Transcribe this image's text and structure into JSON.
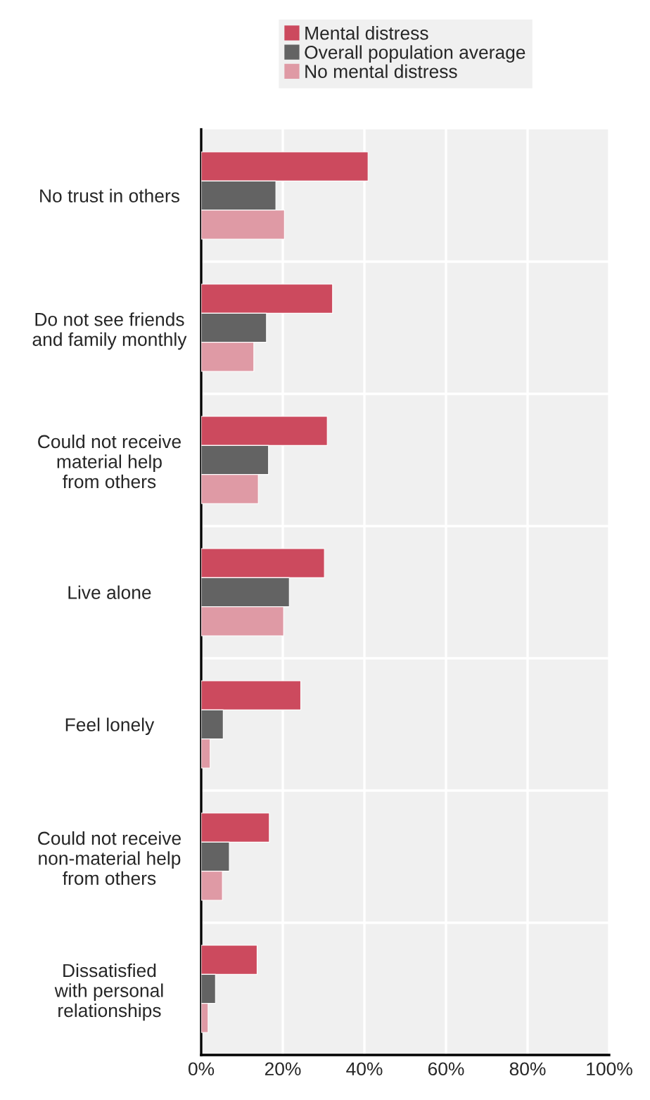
{
  "chart_data": {
    "type": "bar",
    "orientation": "horizontal",
    "categories": [
      "No trust in others",
      "Do not see friends\nand family monthly",
      "Could not receive\nmaterial help\nfrom others",
      "Live alone",
      "Feel lonely",
      "Could not receive\nnon-material help\nfrom others",
      "Dissatisfied\nwith personal\nrelationships"
    ],
    "series": [
      {
        "name": "Mental distress",
        "color": "#cc4a5e",
        "values": [
          40.9,
          32.2,
          30.9,
          30.2,
          24.4,
          16.7,
          13.7
        ]
      },
      {
        "name": "Overall population average",
        "color": "#636363",
        "values": [
          18.3,
          16.0,
          16.5,
          21.6,
          5.4,
          6.9,
          3.5
        ]
      },
      {
        "name": "No mental distress",
        "color": "#df9aa5",
        "values": [
          20.4,
          12.9,
          14.0,
          20.2,
          2.2,
          5.2,
          1.7
        ]
      }
    ],
    "xlim": [
      0,
      100
    ],
    "xticks": [
      {
        "value": 0,
        "label": "0%"
      },
      {
        "value": 20,
        "label": "20%"
      },
      {
        "value": 40,
        "label": "40%"
      },
      {
        "value": 60,
        "label": "60%"
      },
      {
        "value": 80,
        "label": "80%"
      },
      {
        "value": 100,
        "label": "100%"
      }
    ],
    "grid": true,
    "legend": "top"
  }
}
